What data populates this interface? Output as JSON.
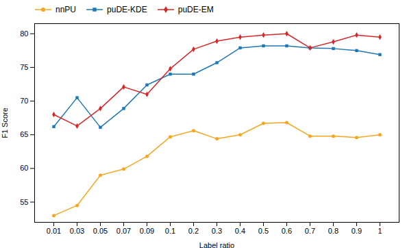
{
  "chart_data": {
    "type": "line",
    "xlabel": "Label ratio",
    "ylabel": "F1 Score",
    "categories": [
      "0.01",
      "0.03",
      "0.05",
      "0.07",
      "0.09",
      "0.1",
      "0.2",
      "0.3",
      "0.4",
      "0.5",
      "0.6",
      "0.7",
      "0.8",
      "0.9",
      "1"
    ],
    "series": [
      {
        "name": "nnPU",
        "color": "#f5a623",
        "marker": "circle",
        "values": [
          53.0,
          54.5,
          59.0,
          59.9,
          61.8,
          64.7,
          65.6,
          64.4,
          65.0,
          66.7,
          66.8,
          64.8,
          64.8,
          64.6,
          65.0
        ]
      },
      {
        "name": "puDE-KDE",
        "color": "#1f77b4",
        "marker": "square",
        "values": [
          66.2,
          70.5,
          66.1,
          68.9,
          72.4,
          74.0,
          74.0,
          75.7,
          77.9,
          78.2,
          78.2,
          77.9,
          77.8,
          77.5,
          76.9
        ]
      },
      {
        "name": "puDE-EM",
        "color": "#d62728",
        "marker": "diamond",
        "values": [
          68.0,
          66.3,
          68.9,
          72.1,
          71.0,
          74.8,
          77.7,
          78.9,
          79.5,
          79.8,
          80.0,
          77.9,
          78.8,
          79.8,
          79.5
        ]
      }
    ],
    "ylim": [
      52,
      81.5
    ],
    "yticks": [
      55,
      60,
      65,
      70,
      75,
      80
    ],
    "legend": "upper left",
    "grid": false
  }
}
